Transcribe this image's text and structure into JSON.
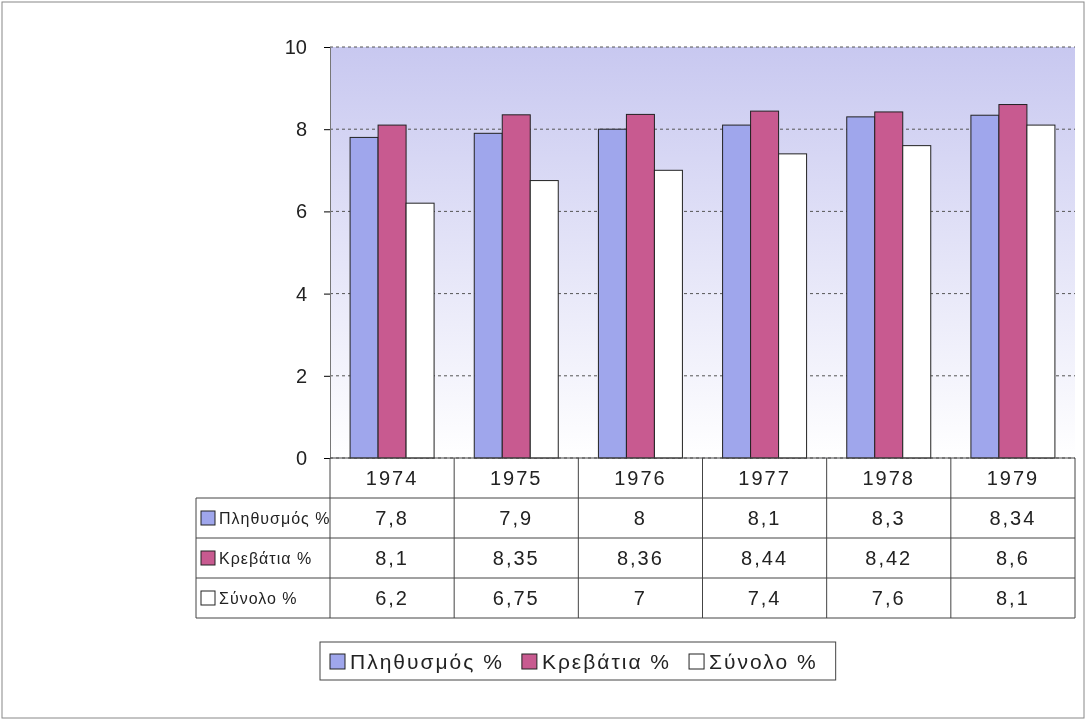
{
  "chart_data": {
    "type": "bar",
    "categories": [
      "1974",
      "1975",
      "1976",
      "1977",
      "1978",
      "1979"
    ],
    "series": [
      {
        "name": "Πληθυσμός %",
        "color": "#9fa6ec",
        "values": [
          7.8,
          7.9,
          8,
          8.1,
          8.3,
          8.34
        ],
        "value_labels": [
          "7,8",
          "7,9",
          "8",
          "8,1",
          "8,3",
          "8,34"
        ]
      },
      {
        "name": "Κρεβάτια %",
        "color": "#c85a90",
        "values": [
          8.1,
          8.35,
          8.36,
          8.44,
          8.42,
          8.6
        ],
        "value_labels": [
          "8,1",
          "8,35",
          "8,36",
          "8,44",
          "8,42",
          "8,6"
        ]
      },
      {
        "name": "Σύνολο %",
        "color": "#ffffff",
        "values": [
          6.2,
          6.75,
          7,
          7.4,
          7.6,
          8.1
        ],
        "value_labels": [
          "6,2",
          "6,75",
          "7",
          "7,4",
          "7,6",
          "8,1"
        ]
      }
    ],
    "ylim": [
      0,
      10
    ],
    "yticks": [
      0,
      2,
      4,
      6,
      8,
      10
    ],
    "grid": "y",
    "legend": "bottom"
  }
}
